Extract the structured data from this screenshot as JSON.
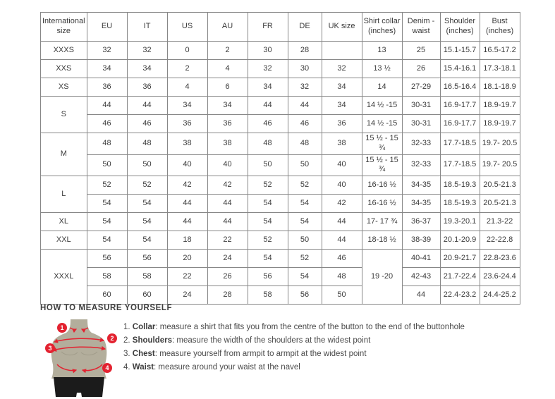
{
  "size_chart": {
    "headers": [
      "International size",
      "EU",
      "IT",
      "US",
      "AU",
      "FR",
      "DE",
      "UK size",
      "Shirt collar (inches)",
      "Denim - waist",
      "Shoulder (inches)",
      "Bust (inches)"
    ],
    "rows": [
      [
        "XXXS",
        "32",
        "32",
        "0",
        "2",
        "30",
        "28",
        "",
        "13",
        "25",
        "15.1-15.7",
        "16.5-17.2"
      ],
      [
        "XXS",
        "34",
        "34",
        "2",
        "4",
        "32",
        "30",
        "32",
        "13 ½",
        "26",
        "15.4-16.1",
        "17.3-18.1"
      ],
      [
        "XS",
        "36",
        "36",
        "4",
        "6",
        "34",
        "32",
        "34",
        "14",
        "27-29",
        "16.5-16.4",
        "18.1-18.9"
      ],
      [
        {
          "t": "S",
          "rs": 2
        },
        "44",
        "44",
        "34",
        "34",
        "44",
        "44",
        "34",
        "14 ½ -15",
        "30-31",
        "16.9-17.7",
        "18.9-19.7"
      ],
      [
        "46",
        "46",
        "36",
        "36",
        "46",
        "46",
        "36",
        "14 ½ -15",
        "30-31",
        "16.9-17.7",
        "18.9-19.7"
      ],
      [
        {
          "t": "M",
          "rs": 2
        },
        "48",
        "48",
        "38",
        "38",
        "48",
        "48",
        "38",
        "15 ½ - 15 ¾",
        "32-33",
        "17.7-18.5",
        "19.7- 20.5"
      ],
      [
        "50",
        "50",
        "40",
        "40",
        "50",
        "50",
        "40",
        "15 ½ - 15 ¾",
        "32-33",
        "17.7-18.5",
        "19.7- 20.5"
      ],
      [
        {
          "t": "L",
          "rs": 2
        },
        "52",
        "52",
        "42",
        "42",
        "52",
        "52",
        "40",
        "16-16 ½",
        "34-35",
        "18.5-19.3",
        "20.5-21.3"
      ],
      [
        "54",
        "54",
        "44",
        "44",
        "54",
        "54",
        "42",
        "16-16 ½",
        "34-35",
        "18.5-19.3",
        "20.5-21.3"
      ],
      [
        "XL",
        "54",
        "54",
        "44",
        "44",
        "54",
        "54",
        "44",
        "17- 17 ¾",
        "36-37",
        "19.3-20.1",
        "21.3-22"
      ],
      [
        "XXL",
        "54",
        "54",
        "18",
        "22",
        "52",
        "50",
        "44",
        "18-18 ½",
        "38-39",
        "20.1-20.9",
        "22-22.8"
      ],
      [
        {
          "t": "XXXL",
          "rs": 3
        },
        "56",
        "56",
        "20",
        "24",
        "54",
        "52",
        "46",
        {
          "t": "19 -20",
          "rs": 3
        },
        "40-41",
        "20.9-21.7",
        "22.8-23.6"
      ],
      [
        "58",
        "58",
        "22",
        "26",
        "56",
        "54",
        "48",
        "42-43",
        "21.7-22.4",
        "23.6-24.4"
      ],
      [
        "60",
        "60",
        "24",
        "28",
        "58",
        "56",
        "50",
        "44",
        "22.4-23.2",
        "24.4-25.2"
      ]
    ]
  },
  "measure_guide": {
    "title": "HOW TO MEASURE YOURSELF",
    "steps": [
      {
        "number": "1.",
        "term": "Collar",
        "description": "measure a shirt that fits you from the centre of the button to the end of the buttonhole"
      },
      {
        "number": "2.",
        "term": "Shoulders",
        "description": "measure the width of the shoulders at the widest point"
      },
      {
        "number": "3.",
        "term": "Chest",
        "description": "measure yourself from armpit to armpit at the widest point"
      },
      {
        "number": "4.",
        "term": "Waist",
        "description": "measure around your waist at the navel"
      }
    ],
    "figure_markers": [
      "1",
      "2",
      "3",
      "4"
    ]
  },
  "colors": {
    "accent_red": "#e32230",
    "mannequin": "#b3ae9c",
    "mannequin_shade": "#a29d8b",
    "shorts": "#1b1b1b",
    "table_border": "#878787",
    "text": "#3b3b3b"
  }
}
